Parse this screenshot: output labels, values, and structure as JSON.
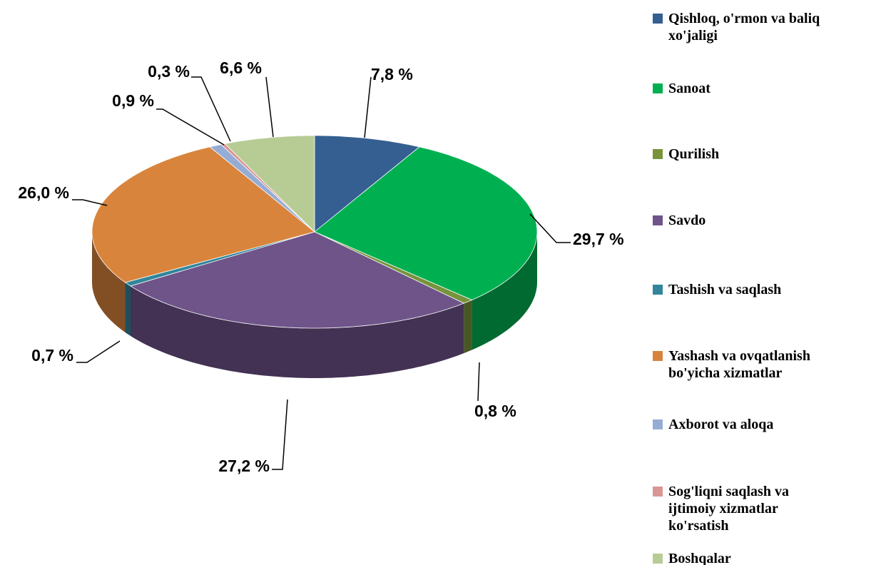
{
  "chart_data": {
    "type": "pie",
    "categories": [
      "Qishloq, o'rmon va baliq xo'jaligi",
      "Sanoat",
      "Qurilish",
      "Savdo",
      "Tashish va saqlash",
      "Yashash va ovqatlanish bo'yicha xizmatlar",
      "Axborot va aloqa",
      "Sog'liqni saqlash va ijtimoiy xizmatlar ko'rsatish",
      "Boshqalar"
    ],
    "values": [
      7.8,
      29.7,
      0.8,
      27.2,
      0.7,
      26.0,
      0.9,
      0.3,
      6.6
    ],
    "value_labels": [
      "7,8 %",
      "29,7 %",
      "0,8 %",
      "27,2 %",
      "0,7 %",
      "26,0 %",
      "0,9 %",
      "0,3 %",
      "6,6 %"
    ],
    "colors": [
      "#355f91",
      "#00b050",
      "#77933c",
      "#6f548a",
      "#31869b",
      "#d9843c",
      "#95add4",
      "#d99694",
      "#b7cc94"
    ],
    "legend": "right"
  }
}
